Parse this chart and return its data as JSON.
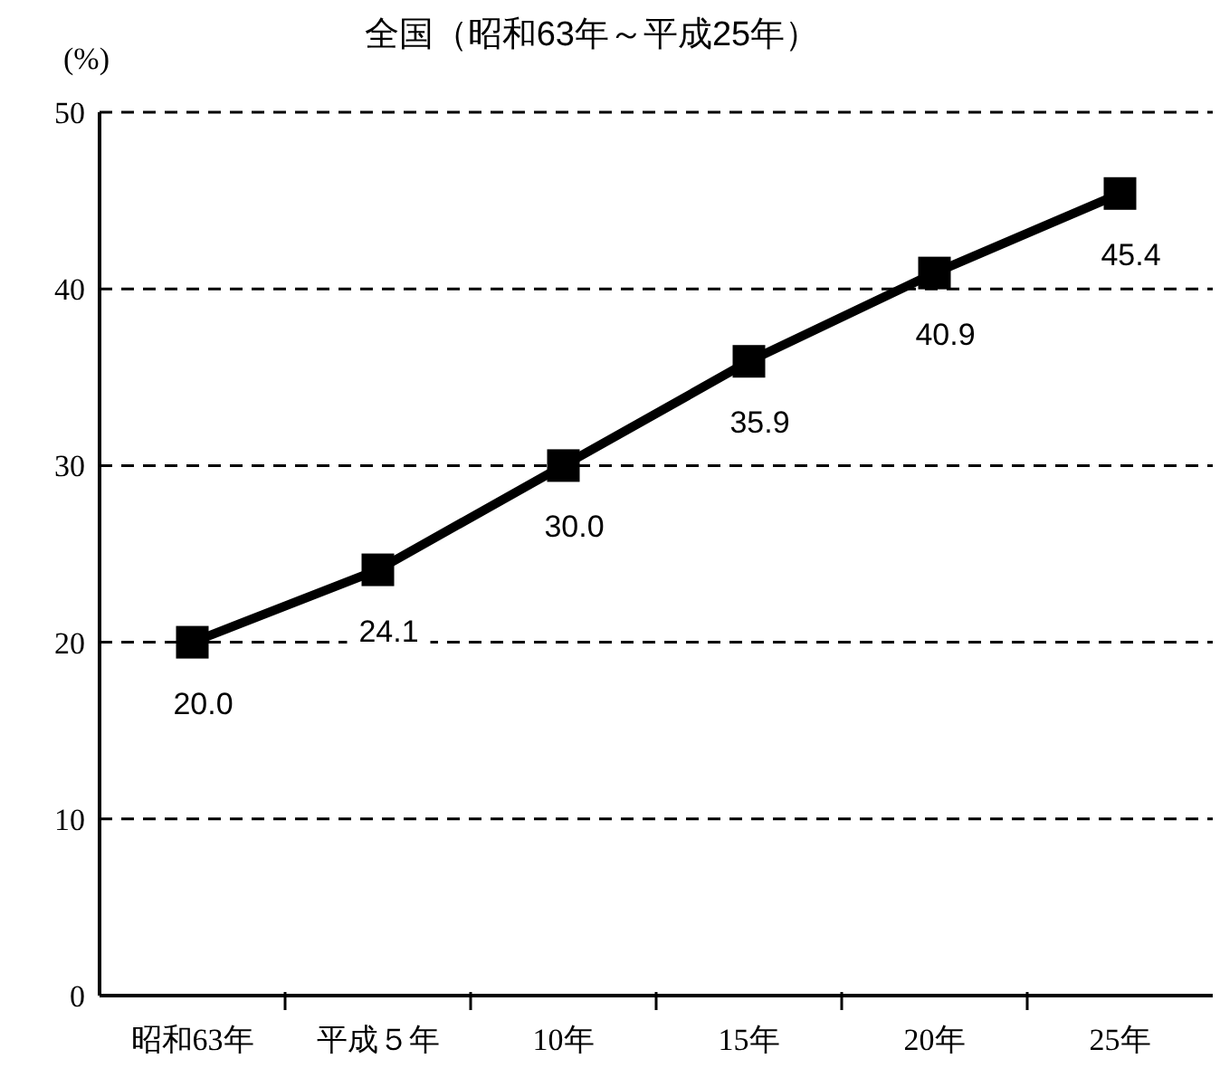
{
  "chart_data": {
    "type": "line",
    "title": "全国（昭和63年～平成25年）",
    "ylabel": "(%)",
    "categories": [
      "昭和63年",
      "平成５年",
      "10年",
      "15年",
      "20年",
      "25年"
    ],
    "series": [
      {
        "color": "#000000",
        "values": [
          20.0,
          24.1,
          30.0,
          35.9,
          40.9,
          45.4
        ],
        "value_labels": [
          "20.0",
          "24.1",
          "30.0",
          "35.9",
          "40.9",
          "45.4"
        ]
      }
    ],
    "ylim": [
      0,
      50
    ],
    "yticks": [
      0,
      10,
      20,
      30,
      40,
      50
    ],
    "grid": "y",
    "marker": "square",
    "line_style": "solid"
  }
}
